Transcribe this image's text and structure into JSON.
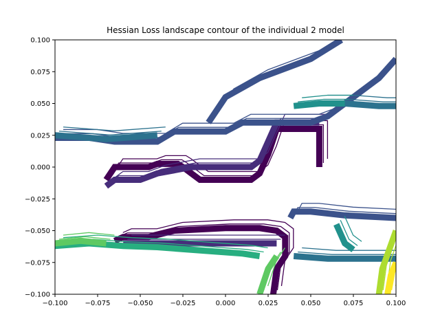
{
  "chart_data": {
    "type": "contour",
    "title": "Hessian Loss landscape contour of the individual 2 model",
    "xlabel": "",
    "ylabel": "",
    "xlim": [
      -0.1,
      0.1
    ],
    "ylim": [
      -0.1,
      0.1
    ],
    "xticks": [
      -0.1,
      -0.075,
      -0.05,
      -0.025,
      0.0,
      0.025,
      0.05,
      0.075,
      0.1
    ],
    "xtick_labels": [
      "−0.100",
      "−0.075",
      "−0.050",
      "−0.025",
      "0.000",
      "0.025",
      "0.050",
      "0.075",
      "0.100"
    ],
    "yticks": [
      -0.1,
      -0.075,
      -0.05,
      -0.025,
      0.0,
      0.025,
      0.05,
      0.075,
      0.1
    ],
    "ytick_labels": [
      "−0.100",
      "−0.075",
      "−0.050",
      "−0.025",
      "0.000",
      "0.025",
      "0.050",
      "0.075",
      "0.100"
    ],
    "grid": false,
    "colormap": "viridis",
    "level_colors": [
      "#440154",
      "#472d7b",
      "#3b528b",
      "#2c728e",
      "#21918c",
      "#28ae80",
      "#5ec962",
      "#addc30",
      "#fde725"
    ],
    "series": [
      {
        "level": 0,
        "points": [
          [
            -0.07,
            -0.01
          ],
          [
            -0.065,
            0.0
          ],
          [
            -0.045,
            0.0
          ],
          [
            -0.04,
            0.0025
          ],
          [
            -0.028,
            0.0025
          ],
          [
            -0.025,
            0.0
          ],
          [
            -0.02,
            -0.005
          ],
          [
            -0.015,
            -0.01
          ],
          [
            0.015,
            -0.01
          ],
          [
            0.02,
            -0.005
          ],
          [
            0.025,
            0.01
          ],
          [
            0.03,
            0.03
          ],
          [
            0.055,
            0.03
          ],
          [
            0.055,
            0.0
          ]
        ]
      },
      {
        "level": 0,
        "points": [
          [
            -0.065,
            -0.058
          ],
          [
            -0.06,
            -0.055
          ],
          [
            -0.045,
            -0.055
          ],
          [
            -0.03,
            -0.05
          ],
          [
            0.0,
            -0.048
          ],
          [
            0.02,
            -0.048
          ],
          [
            0.03,
            -0.05
          ],
          [
            0.035,
            -0.055
          ],
          [
            0.035,
            -0.07
          ],
          [
            0.03,
            -0.08
          ],
          [
            0.028,
            -0.1
          ]
        ]
      },
      {
        "level": 1,
        "points": [
          [
            -0.07,
            -0.015
          ],
          [
            -0.065,
            -0.01
          ],
          [
            -0.05,
            -0.01
          ],
          [
            -0.04,
            -0.005
          ],
          [
            -0.02,
            0.0
          ],
          [
            0.0,
            0.0
          ],
          [
            0.015,
            0.0
          ],
          [
            0.02,
            0.005
          ],
          [
            0.03,
            0.035
          ],
          [
            0.05,
            0.035
          ],
          [
            0.055,
            0.035
          ]
        ]
      },
      {
        "level": 1,
        "points": [
          [
            -0.06,
            -0.06
          ],
          [
            -0.045,
            -0.06
          ],
          [
            0.0,
            -0.06
          ],
          [
            0.02,
            -0.06
          ],
          [
            0.03,
            -0.06
          ]
        ]
      },
      {
        "level": 2,
        "points": [
          [
            -0.1,
            0.023
          ],
          [
            -0.08,
            0.023
          ],
          [
            -0.065,
            0.02
          ],
          [
            -0.04,
            0.02
          ],
          [
            -0.03,
            0.028
          ],
          [
            0.0,
            0.028
          ],
          [
            0.01,
            0.035
          ],
          [
            0.05,
            0.035
          ],
          [
            0.06,
            0.04
          ],
          [
            0.07,
            0.05
          ],
          [
            0.09,
            0.07
          ],
          [
            0.1,
            0.085
          ]
        ]
      },
      {
        "level": 2,
        "points": [
          [
            -0.01,
            0.035
          ],
          [
            0.0,
            0.055
          ],
          [
            0.02,
            0.07
          ],
          [
            0.05,
            0.085
          ],
          [
            0.068,
            0.1
          ]
        ]
      },
      {
        "level": 2,
        "points": [
          [
            0.038,
            -0.04
          ],
          [
            0.04,
            -0.035
          ],
          [
            0.05,
            -0.035
          ],
          [
            0.07,
            -0.038
          ],
          [
            0.1,
            -0.04
          ]
        ]
      },
      {
        "level": 3,
        "points": [
          [
            -0.1,
            0.025
          ],
          [
            -0.07,
            0.022
          ],
          [
            -0.06,
            0.023
          ],
          [
            -0.04,
            0.025
          ]
        ]
      },
      {
        "level": 3,
        "points": [
          [
            0.055,
            0.05
          ],
          [
            0.07,
            0.05
          ],
          [
            0.09,
            0.048
          ],
          [
            0.1,
            0.048
          ]
        ]
      },
      {
        "level": 3,
        "points": [
          [
            0.04,
            -0.07
          ],
          [
            0.06,
            -0.072
          ],
          [
            0.08,
            -0.072
          ],
          [
            0.1,
            -0.072
          ]
        ]
      },
      {
        "level": 4,
        "points": [
          [
            0.04,
            0.048
          ],
          [
            0.055,
            0.05
          ],
          [
            0.07,
            0.05
          ]
        ]
      },
      {
        "level": 4,
        "points": [
          [
            0.065,
            -0.045
          ],
          [
            0.07,
            -0.06
          ],
          [
            0.075,
            -0.065
          ]
        ]
      },
      {
        "level": 5,
        "points": [
          [
            -0.1,
            -0.062
          ],
          [
            -0.08,
            -0.06
          ],
          [
            -0.06,
            -0.062
          ],
          [
            -0.04,
            -0.063
          ],
          [
            -0.01,
            -0.066
          ],
          [
            0.01,
            -0.068
          ],
          [
            0.02,
            -0.07
          ]
        ]
      },
      {
        "level": 6,
        "points": [
          [
            -0.1,
            -0.06
          ],
          [
            -0.085,
            -0.058
          ],
          [
            -0.07,
            -0.06
          ]
        ]
      },
      {
        "level": 6,
        "points": [
          [
            0.02,
            -0.1
          ],
          [
            0.025,
            -0.08
          ],
          [
            0.03,
            -0.07
          ]
        ]
      },
      {
        "level": 7,
        "points": [
          [
            0.09,
            -0.1
          ],
          [
            0.092,
            -0.08
          ],
          [
            0.1,
            -0.05
          ]
        ]
      },
      {
        "level": 8,
        "points": [
          [
            0.095,
            -0.1
          ],
          [
            0.097,
            -0.085
          ],
          [
            0.1,
            -0.075
          ]
        ]
      }
    ]
  }
}
